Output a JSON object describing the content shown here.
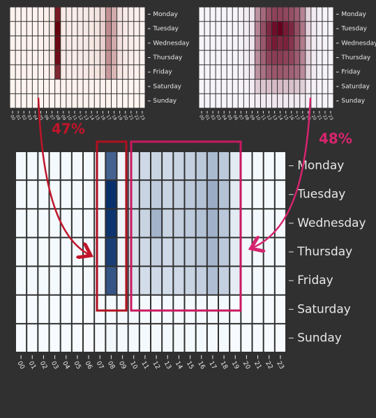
{
  "chart_data": [
    {
      "type": "heatmap",
      "colors": [
        "#fff5f0",
        "#67000d"
      ],
      "categories": [
        "00",
        "01",
        "02",
        "03",
        "04",
        "05",
        "06",
        "07",
        "08",
        "09",
        "10",
        "11",
        "12",
        "13",
        "14",
        "15",
        "16",
        "17",
        "18",
        "19",
        "20",
        "21",
        "22",
        "23"
      ],
      "rows": [
        "Monday",
        "Tuesday",
        "Wednesday",
        "Thursday",
        "Friday",
        "Saturday",
        "Sunday"
      ],
      "values": [
        [
          3,
          3,
          3,
          3,
          3,
          3,
          4,
          8,
          85,
          6,
          5,
          5,
          6,
          6,
          7,
          8,
          15,
          40,
          30,
          10,
          6,
          5,
          4,
          3
        ],
        [
          3,
          3,
          3,
          3,
          3,
          3,
          4,
          9,
          95,
          6,
          5,
          5,
          6,
          6,
          7,
          8,
          16,
          42,
          32,
          10,
          6,
          5,
          4,
          3
        ],
        [
          3,
          3,
          3,
          3,
          3,
          3,
          4,
          9,
          92,
          6,
          5,
          5,
          6,
          6,
          7,
          8,
          16,
          42,
          30,
          10,
          6,
          5,
          4,
          3
        ],
        [
          3,
          3,
          3,
          3,
          3,
          3,
          4,
          8,
          90,
          6,
          5,
          5,
          6,
          6,
          7,
          8,
          15,
          40,
          30,
          10,
          6,
          5,
          4,
          3
        ],
        [
          3,
          3,
          3,
          3,
          3,
          3,
          4,
          7,
          80,
          6,
          5,
          5,
          6,
          6,
          7,
          8,
          14,
          36,
          26,
          9,
          6,
          5,
          4,
          3
        ],
        [
          2,
          2,
          2,
          2,
          2,
          2,
          2,
          2,
          3,
          3,
          3,
          3,
          3,
          3,
          3,
          3,
          3,
          3,
          3,
          2,
          2,
          2,
          2,
          2
        ],
        [
          2,
          2,
          2,
          2,
          2,
          2,
          2,
          2,
          2,
          3,
          3,
          3,
          3,
          3,
          3,
          3,
          3,
          3,
          3,
          2,
          2,
          2,
          2,
          2
        ]
      ]
    },
    {
      "type": "heatmap",
      "colors": [
        "#f7f4f9",
        "#67001f"
      ],
      "categories": [
        "00",
        "01",
        "02",
        "03",
        "04",
        "05",
        "06",
        "07",
        "08",
        "09",
        "10",
        "11",
        "12",
        "13",
        "14",
        "15",
        "16",
        "17",
        "18",
        "19",
        "20",
        "21",
        "22",
        "23"
      ],
      "rows": [
        "Monday",
        "Tuesday",
        "Wednesday",
        "Thursday",
        "Friday",
        "Saturday",
        "Sunday"
      ],
      "values": [
        [
          2,
          2,
          2,
          2,
          2,
          2,
          2,
          3,
          5,
          8,
          40,
          55,
          65,
          70,
          70,
          68,
          65,
          60,
          45,
          15,
          5,
          3,
          2,
          2
        ],
        [
          2,
          2,
          2,
          2,
          2,
          2,
          2,
          3,
          5,
          8,
          45,
          65,
          80,
          90,
          95,
          85,
          80,
          65,
          50,
          15,
          5,
          3,
          2,
          2
        ],
        [
          2,
          2,
          2,
          2,
          2,
          2,
          2,
          3,
          5,
          8,
          45,
          62,
          78,
          85,
          80,
          82,
          75,
          62,
          48,
          15,
          5,
          3,
          2,
          2
        ],
        [
          2,
          2,
          2,
          2,
          2,
          2,
          2,
          3,
          5,
          8,
          42,
          58,
          70,
          72,
          72,
          70,
          68,
          60,
          45,
          15,
          5,
          3,
          2,
          2
        ],
        [
          2,
          2,
          2,
          2,
          2,
          2,
          2,
          3,
          5,
          8,
          40,
          52,
          60,
          62,
          62,
          60,
          58,
          55,
          42,
          14,
          5,
          3,
          2,
          2
        ],
        [
          2,
          2,
          2,
          2,
          2,
          2,
          2,
          2,
          3,
          5,
          18,
          20,
          22,
          24,
          24,
          22,
          22,
          20,
          16,
          6,
          3,
          2,
          2,
          2
        ],
        [
          2,
          2,
          2,
          2,
          2,
          2,
          2,
          2,
          2,
          3,
          5,
          6,
          6,
          7,
          7,
          6,
          6,
          6,
          5,
          3,
          2,
          2,
          2,
          2
        ]
      ]
    },
    {
      "type": "heatmap",
      "colors": [
        "#f7fbff",
        "#08306b"
      ],
      "categories": [
        "00",
        "01",
        "02",
        "03",
        "04",
        "05",
        "06",
        "07",
        "08",
        "09",
        "10",
        "11",
        "12",
        "13",
        "14",
        "15",
        "16",
        "17",
        "18",
        "19",
        "20",
        "21",
        "22",
        "23"
      ],
      "rows": [
        "Monday",
        "Tuesday",
        "Wednesday",
        "Thursday",
        "Friday",
        "Saturday",
        "Sunday"
      ],
      "values": [
        [
          3,
          3,
          3,
          3,
          3,
          3,
          3,
          4,
          72,
          5,
          15,
          18,
          20,
          18,
          20,
          22,
          25,
          32,
          25,
          10,
          4,
          3,
          3,
          3
        ],
        [
          3,
          3,
          3,
          3,
          3,
          3,
          3,
          4,
          95,
          5,
          16,
          20,
          24,
          20,
          22,
          25,
          28,
          38,
          28,
          10,
          4,
          3,
          3,
          3
        ],
        [
          3,
          3,
          3,
          3,
          3,
          3,
          3,
          4,
          93,
          5,
          16,
          20,
          35,
          20,
          22,
          24,
          28,
          36,
          26,
          10,
          4,
          3,
          3,
          3
        ],
        [
          3,
          3,
          3,
          3,
          3,
          3,
          3,
          4,
          88,
          5,
          15,
          18,
          22,
          18,
          20,
          22,
          26,
          34,
          25,
          10,
          4,
          3,
          3,
          3
        ],
        [
          3,
          3,
          3,
          3,
          3,
          3,
          3,
          4,
          78,
          5,
          14,
          16,
          18,
          16,
          18,
          20,
          22,
          30,
          22,
          9,
          4,
          3,
          3,
          3
        ],
        [
          2,
          2,
          2,
          2,
          2,
          2,
          2,
          2,
          3,
          3,
          3,
          3,
          3,
          3,
          3,
          3,
          3,
          3,
          3,
          2,
          2,
          2,
          2,
          2
        ],
        [
          2,
          2,
          2,
          2,
          2,
          2,
          2,
          2,
          4,
          3,
          3,
          3,
          3,
          3,
          3,
          3,
          3,
          3,
          3,
          2,
          2,
          2,
          2,
          2
        ]
      ]
    }
  ],
  "annotations": [
    "47%",
    "48%"
  ]
}
